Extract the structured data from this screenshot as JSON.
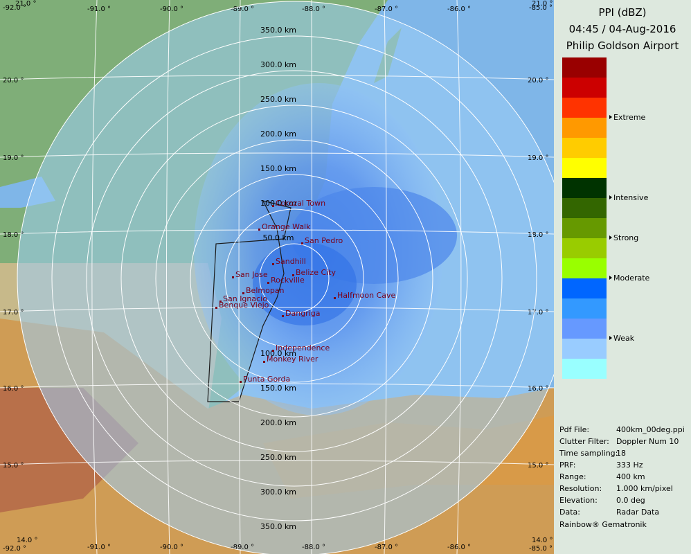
{
  "header": {
    "product": "PPI (dBZ)",
    "datetime": "04:45 / 04-Aug-2016",
    "site": "Philip Goldson Airport"
  },
  "map": {
    "longitudes": [
      "-91.0 °",
      "-90.0 °",
      "-89.0 °",
      "-88.0 °",
      "-87.0 °",
      "-86.0 °"
    ],
    "corner_longitudes": [
      "-92.0 °",
      "-85.0 °"
    ],
    "latitudes": [
      "20.0 °",
      "19.0 °",
      "18.0 °",
      "17.0 °",
      "16.0 °",
      "15.0 °"
    ],
    "corner_latitudes": [
      "21.0 °",
      "14.0 °"
    ],
    "range_rings_north": [
      "350.0 km",
      "300.0 km",
      "250.0 km",
      "200.0 km",
      "150.0 km",
      "100.0 km",
      "50.0 km"
    ],
    "range_rings_south": [
      "100.0 km",
      "150.0 km",
      "200.0 km",
      "250.0 km",
      "300.0 km",
      "350.0 km"
    ],
    "cities": [
      "Corozal Town",
      "Orange Walk",
      "San Pedro",
      "Sandhill",
      "Belize City",
      "San Jose",
      "Rockville",
      "Belmopan",
      "San Ignacio",
      "Benque Viejo",
      "Dangriga",
      "Halfmoon Cave",
      "Independence",
      "Monkey River",
      "Punta Gorda"
    ]
  },
  "legend": {
    "colors": [
      "#990000",
      "#cc0000",
      "#ff3300",
      "#ff9900",
      "#ffcc00",
      "#ffff00",
      "#003300",
      "#336600",
      "#669900",
      "#99cc00",
      "#99ff00",
      "#0066ff",
      "#3399ff",
      "#6699ff",
      "#99ccff",
      "#99ffff"
    ],
    "labels": [
      "Extreme",
      "Intensive",
      "Strong",
      "Moderate",
      "Weak"
    ]
  },
  "info": [
    [
      "Pdf File:",
      "400km_00deg.ppi"
    ],
    [
      "Clutter Filter:",
      "Doppler Num 10"
    ],
    [
      "Time sampling:",
      "18"
    ],
    [
      "PRF:",
      "333 Hz"
    ],
    [
      "Range:",
      "400 km"
    ],
    [
      "Resolution:",
      "1.000 km/pixel"
    ],
    [
      "Elevation:",
      "0.0 deg"
    ],
    [
      "Data:",
      "Radar Data"
    ]
  ],
  "footer": "Rainbow® Gematronik"
}
